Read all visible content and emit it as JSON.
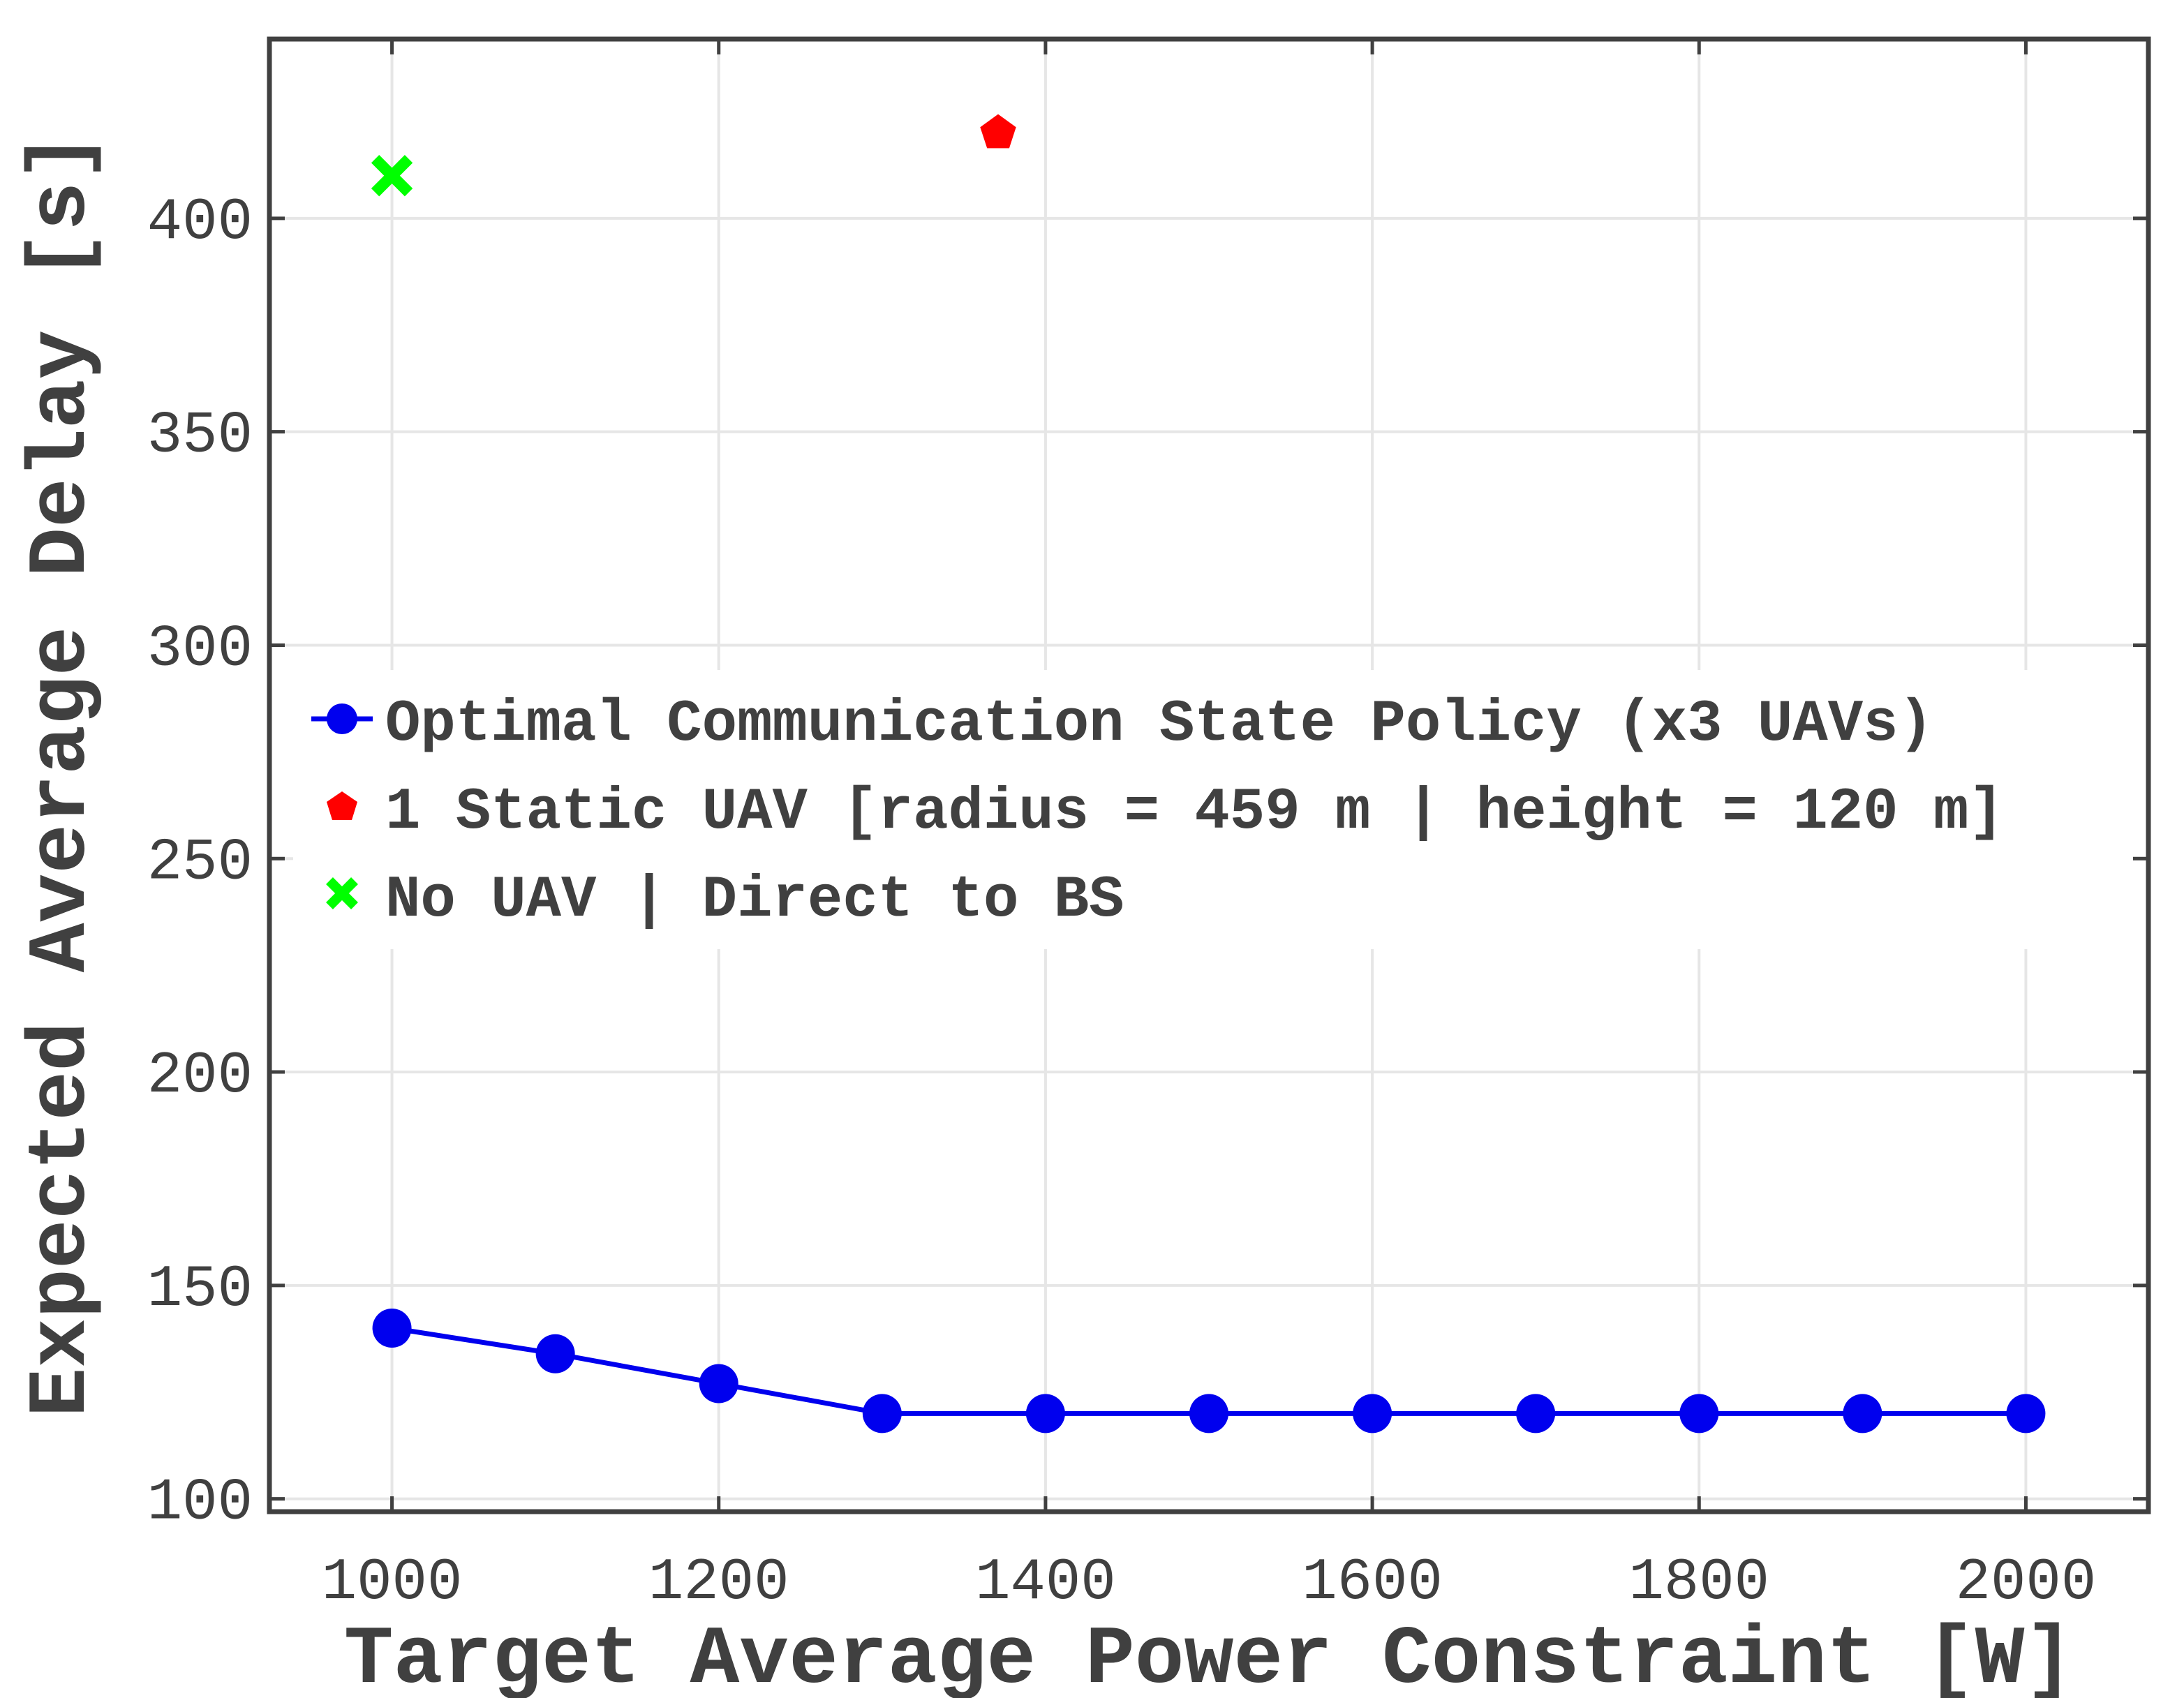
{
  "chart_data": {
    "type": "line",
    "xlabel": "Target Average Power Constraint [W]",
    "ylabel": "Expected Average Delay [s]",
    "xlim": [
      925,
      2075
    ],
    "ylim": [
      97,
      442
    ],
    "xticks": [
      "1000",
      "1200",
      "1400",
      "1600",
      "1800",
      "2000"
    ],
    "yticks": [
      "100",
      "150",
      "200",
      "250",
      "300",
      "350",
      "400"
    ],
    "grid": true,
    "legend_position": "center-left",
    "series": [
      {
        "name": "Optimal Communication State Policy (x3 UAVs)",
        "marker": "circle",
        "line": true,
        "color": "#0000ee",
        "x": [
          1000,
          1100,
          1200,
          1300,
          1400,
          1500,
          1600,
          1700,
          1800,
          1900,
          2000
        ],
        "y": [
          140,
          134,
          127,
          120,
          120,
          120,
          120,
          120,
          120,
          120,
          120
        ]
      },
      {
        "name": "1 Static UAV [radius = 459 m | height = 120 m]",
        "marker": "pentagon",
        "line": false,
        "color": "#ff0000",
        "x": [
          1371
        ],
        "y": [
          420
        ]
      },
      {
        "name": "No UAV | Direct to BS",
        "marker": "x",
        "line": false,
        "color": "#00ff00",
        "x": [
          1000
        ],
        "y": [
          410
        ]
      }
    ]
  }
}
